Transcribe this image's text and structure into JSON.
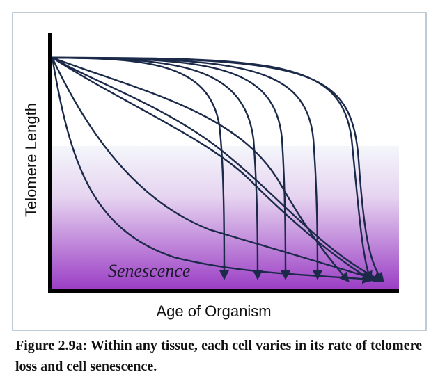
{
  "figure": {
    "y_axis_label": "Telomere Length",
    "x_axis_label": "Age of Organism",
    "region_label": "Senescence",
    "caption": "Figure 2.9a: Within any tissue, each cell varies in its rate of telomere loss and cell senescence."
  }
}
